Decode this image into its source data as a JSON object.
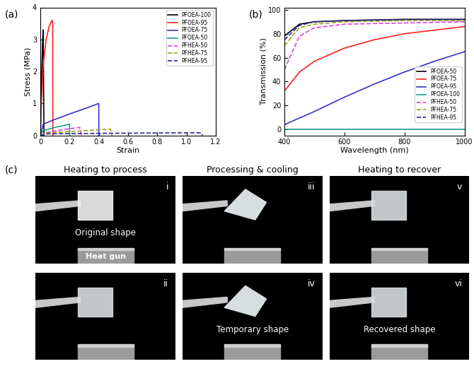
{
  "chart_data": [
    {
      "type": "line",
      "label": "(a)",
      "x_label": "Strain",
      "y_label": "Stress (MPa)",
      "xlim": [
        0,
        1.2
      ],
      "xticks": [
        0,
        {
          "value": 0.2,
          "label": "0.2"
        },
        {
          "value": 0.4,
          "label": "0.4"
        },
        {
          "value": 0.6,
          "label": "0.6"
        },
        {
          "value": 0.8,
          "label": "0.8"
        },
        {
          "value": 1.0,
          "label": "1.0"
        },
        {
          "value": 1.2,
          "label": "1.2"
        }
      ],
      "ylim": [
        0,
        4
      ],
      "yticks": [
        0,
        1,
        2,
        3,
        4
      ],
      "legend": "upper right",
      "series": [
        {
          "name": "PFOEA-100",
          "color": "#000000",
          "line_style": "solid",
          "x": [
            0,
            0.005,
            0.01,
            0.015,
            0.02,
            0.022,
            0.025
          ],
          "values": [
            0,
            1.0,
            2.0,
            2.8,
            3.3,
            2.1,
            0
          ]
        },
        {
          "name": "PFOEA-95",
          "color": "#ff2020",
          "line_style": "solid",
          "x": [
            0,
            0.01,
            0.02,
            0.04,
            0.06,
            0.08,
            0.085,
            0.086
          ],
          "values": [
            0,
            1.2,
            2.2,
            3.0,
            3.4,
            3.6,
            3.55,
            0
          ]
        },
        {
          "name": "PFOEA-75",
          "color": "#3333cc",
          "line_style": "solid",
          "x": [
            0,
            0.02,
            0.1,
            0.2,
            0.3,
            0.4,
            0.401
          ],
          "values": [
            0,
            0.35,
            0.5,
            0.67,
            0.83,
            1.0,
            0
          ]
        },
        {
          "name": "PFOEA-50",
          "color": "#1a9e8f",
          "line_style": "solid",
          "x": [
            0,
            0.02,
            0.1,
            0.2,
            0.201
          ],
          "values": [
            0,
            0.15,
            0.25,
            0.35,
            0
          ]
        },
        {
          "name": "PFHEA-50",
          "color": "#e040e0",
          "line_style": "dashed",
          "x": [
            0,
            0.05,
            0.15,
            0.27,
            0.28
          ],
          "values": [
            0,
            0.1,
            0.18,
            0.25,
            0
          ]
        },
        {
          "name": "PFHEA-75",
          "color": "#a0a020",
          "line_style": "dashed",
          "x": [
            0,
            0.05,
            0.2,
            0.35,
            0.48,
            0.49
          ],
          "values": [
            0,
            0.08,
            0.12,
            0.16,
            0.2,
            0
          ]
        },
        {
          "name": "PFHEA-95",
          "color": "#2a2a9a",
          "line_style": "dashed",
          "x": [
            0,
            0.05,
            0.3,
            0.6,
            0.9,
            1.1,
            1.11
          ],
          "values": [
            0,
            0.05,
            0.06,
            0.07,
            0.08,
            0.08,
            0
          ]
        }
      ]
    },
    {
      "type": "line",
      "label": "(b)",
      "x_label": "Wavelength (nm)",
      "y_label": "Transmission (%)",
      "xlim": [
        400,
        1000
      ],
      "xticks": [
        400,
        600,
        800,
        1000
      ],
      "ylim": [
        -5,
        102
      ],
      "yticks": [
        0,
        20,
        40,
        60,
        80,
        100
      ],
      "legend": "lower right",
      "series": [
        {
          "name": "PFOEA-50",
          "color": "#000000",
          "line_style": "solid",
          "x": [
            400,
            450,
            500,
            600,
            800,
            1000
          ],
          "values": [
            78,
            88,
            90,
            91,
            92,
            92
          ]
        },
        {
          "name": "PFOEA-75",
          "color": "#ff2020",
          "line_style": "solid",
          "x": [
            400,
            450,
            500,
            600,
            700,
            800,
            900,
            1000
          ],
          "values": [
            32,
            48,
            57,
            68,
            75,
            80,
            83,
            86
          ]
        },
        {
          "name": "PFOEA-95",
          "color": "#3333cc",
          "line_style": "solid",
          "x": [
            400,
            500,
            600,
            700,
            800,
            900,
            1000
          ],
          "values": [
            4,
            15,
            27,
            38,
            48,
            57,
            65
          ]
        },
        {
          "name": "PFOEA-100",
          "color": "#1a9e8f",
          "line_style": "solid",
          "x": [
            400,
            700,
            1000
          ],
          "values": [
            0,
            0,
            0
          ]
        },
        {
          "name": "PFHEA-50",
          "color": "#e040e0",
          "line_style": "dashed",
          "x": [
            400,
            450,
            500,
            600,
            800,
            1000
          ],
          "values": [
            50,
            78,
            85,
            88,
            89,
            90
          ]
        },
        {
          "name": "PFHEA-75",
          "color": "#a0a020",
          "line_style": "dashed",
          "x": [
            400,
            450,
            500,
            600,
            800,
            1000
          ],
          "values": [
            70,
            85,
            88,
            90,
            91,
            91
          ]
        },
        {
          "name": "PFHEA-95",
          "color": "#2a2a9a",
          "line_style": "dashed",
          "x": [
            400,
            450,
            500,
            600,
            800,
            1000
          ],
          "values": [
            75,
            87,
            90,
            91,
            92,
            92
          ]
        }
      ]
    }
  ],
  "photos": {
    "label": "(c)",
    "columns": [
      "Heating to process",
      "Processing & cooling",
      "Heating to recover"
    ],
    "panels": [
      {
        "id": "i",
        "caption": "Original shape",
        "device": "Heat gun"
      },
      {
        "id": "ii"
      },
      {
        "id": "iii"
      },
      {
        "id": "iv",
        "caption": "Temporary shape"
      },
      {
        "id": "v"
      },
      {
        "id": "vi",
        "caption": "Recovered shape"
      }
    ]
  }
}
